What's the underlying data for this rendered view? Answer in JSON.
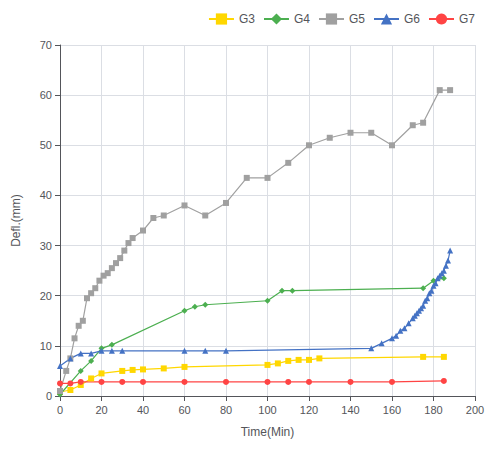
{
  "chart_data": {
    "type": "line",
    "xlabel": "Time(Min)",
    "ylabel": "Defl.(mm)",
    "xlim": [
      0,
      200
    ],
    "ylim": [
      0,
      70
    ],
    "xticks": [
      0,
      20,
      40,
      60,
      80,
      100,
      120,
      140,
      160,
      180,
      200
    ],
    "yticks": [
      0,
      10,
      20,
      30,
      40,
      50,
      60,
      70
    ],
    "grid": true,
    "legend": "upper right",
    "series": [
      {
        "name": "G3",
        "color": "#FFD700",
        "marker": "square",
        "x": [
          0,
          5,
          10,
          15,
          20,
          30,
          35,
          40,
          50,
          60,
          100,
          105,
          110,
          115,
          120,
          125,
          175,
          185
        ],
        "values": [
          0.8,
          1.2,
          2.2,
          3.5,
          4.5,
          5.0,
          5.2,
          5.3,
          5.5,
          5.8,
          6.2,
          6.5,
          7.0,
          7.2,
          7.2,
          7.5,
          7.8,
          7.8
        ]
      },
      {
        "name": "G4",
        "color": "#4CAF50",
        "marker": "diamond",
        "x": [
          0,
          10,
          15,
          20,
          25,
          60,
          65,
          70,
          100,
          107,
          112,
          175,
          180,
          185
        ],
        "values": [
          0.3,
          5.0,
          7.0,
          9.5,
          10.2,
          17.0,
          17.8,
          18.2,
          19.0,
          21.0,
          21.0,
          21.5,
          23.0,
          23.5
        ]
      },
      {
        "name": "G5",
        "color": "#A0A0A0",
        "marker": "square",
        "x": [
          0,
          3,
          5,
          7,
          9,
          11,
          13,
          15,
          17,
          19,
          21,
          23,
          25,
          27,
          29,
          31,
          33,
          35,
          40,
          45,
          50,
          60,
          70,
          80,
          90,
          100,
          110,
          120,
          130,
          140,
          150,
          160,
          170,
          175,
          183,
          188
        ],
        "values": [
          1.0,
          5.0,
          7.5,
          11.5,
          14.0,
          15.0,
          19.5,
          20.5,
          21.5,
          23.0,
          24.0,
          24.5,
          25.5,
          26.5,
          27.5,
          29.0,
          30.5,
          31.5,
          33.0,
          35.5,
          36.0,
          38.0,
          36.0,
          38.5,
          43.5,
          43.5,
          46.5,
          50.0,
          51.5,
          52.5,
          52.5,
          50.0,
          54.0,
          54.5,
          61.0,
          61.0
        ]
      },
      {
        "name": "G6",
        "color": "#4472C4",
        "marker": "triangle",
        "x": [
          0,
          5,
          10,
          15,
          20,
          25,
          30,
          60,
          70,
          80,
          150,
          155,
          160,
          162,
          164,
          166,
          168,
          170,
          171,
          172,
          173,
          174,
          175,
          176,
          177,
          178,
          179,
          180,
          181,
          182,
          183,
          184,
          185,
          186,
          187,
          188
        ],
        "values": [
          6.0,
          7.5,
          8.5,
          8.5,
          9.0,
          9.0,
          9.0,
          9.0,
          9.0,
          9.0,
          9.5,
          10.5,
          11.5,
          12.0,
          13.0,
          13.5,
          14.5,
          15.5,
          16.0,
          16.5,
          17.0,
          17.5,
          18.0,
          19.0,
          19.5,
          20.5,
          21.0,
          22.0,
          22.5,
          23.5,
          24.0,
          24.5,
          25.0,
          26.0,
          27.0,
          29.0
        ]
      },
      {
        "name": "G7",
        "color": "#FF4444",
        "marker": "circle",
        "x": [
          0,
          5,
          10,
          20,
          30,
          40,
          60,
          80,
          100,
          110,
          120,
          140,
          160,
          185
        ],
        "values": [
          2.5,
          2.5,
          2.8,
          2.8,
          2.8,
          2.8,
          2.8,
          2.8,
          2.8,
          2.8,
          2.8,
          2.8,
          2.8,
          3.0
        ]
      }
    ]
  }
}
